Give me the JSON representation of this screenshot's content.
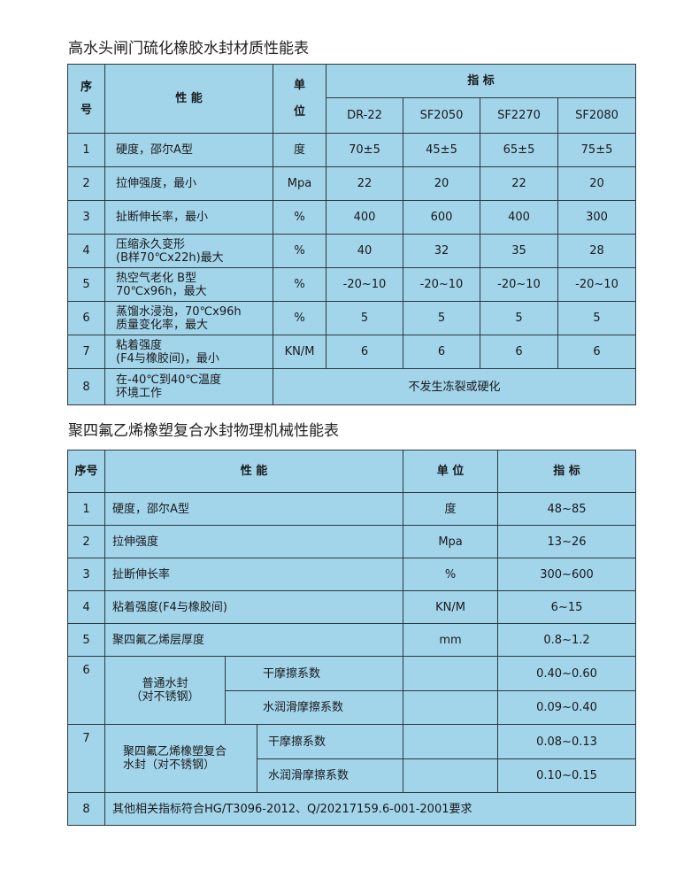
{
  "table1": {
    "title": "高水头闸门硫化橡胶水封材质性能表",
    "headers": {
      "seq": "序\n号",
      "property": "性 能",
      "unit": "单\n位",
      "index": "指 标",
      "grades": [
        "DR-22",
        "SF2050",
        "SF2270",
        "SF2080"
      ]
    },
    "rows": [
      {
        "no": "1",
        "property": "硬度，邵尔A型",
        "unit": "度",
        "values": [
          "70±5",
          "45±5",
          "65±5",
          "75±5"
        ]
      },
      {
        "no": "2",
        "property": "拉伸强度，最小",
        "unit": "Mpa",
        "values": [
          "22",
          "20",
          "22",
          "20"
        ]
      },
      {
        "no": "3",
        "property": "扯断伸长率，最小",
        "unit": "%",
        "values": [
          "400",
          "600",
          "400",
          "300"
        ]
      },
      {
        "no": "4",
        "property": "压缩永久变形\n(B样70℃x22h)最大",
        "unit": "%",
        "values": [
          "40",
          "32",
          "35",
          "28"
        ]
      },
      {
        "no": "5",
        "property": "热空气老化 B型\n70℃x96h，最大",
        "unit": "%",
        "values": [
          "-20~10",
          "-20~10",
          "-20~10",
          "-20~10"
        ]
      },
      {
        "no": "6",
        "property": "蒸馏水浸泡，70℃x96h\n质量变化率，最大",
        "unit": "%",
        "values": [
          "5",
          "5",
          "5",
          "5"
        ]
      },
      {
        "no": "7",
        "property": "粘着强度\n(F4与橡胶间)，最小",
        "unit": "KN/M",
        "values": [
          "6",
          "6",
          "6",
          "6"
        ]
      }
    ],
    "row8": {
      "no": "8",
      "property": "在-40℃到40℃温度\n环境工作",
      "value": "不发生冻裂或硬化"
    }
  },
  "table2": {
    "title": "聚四氟乙烯橡塑复合水封物理机械性能表",
    "headers": {
      "seq": "序号",
      "property": "性 能",
      "unit": "单 位",
      "index": "指 标"
    },
    "rows": [
      {
        "no": "1",
        "property": "硬度，邵尔A型",
        "unit": "度",
        "value": "48~85"
      },
      {
        "no": "2",
        "property": "拉伸强度",
        "unit": "Mpa",
        "value": "13~26"
      },
      {
        "no": "3",
        "property": "扯断伸长率",
        "unit": "%",
        "value": "300~600"
      },
      {
        "no": "4",
        "property": "粘着强度(F4与橡胶间)",
        "unit": "KN/M",
        "value": "6~15"
      },
      {
        "no": "5",
        "property": "聚四氟乙烯层厚度",
        "unit": "mm",
        "value": "0.8~1.2"
      }
    ],
    "row6": {
      "no": "6",
      "group": "普通水封\n（对不锈钢）",
      "sub": [
        {
          "property": "干摩擦系数",
          "value": "0.40~0.60"
        },
        {
          "property": "水润滑摩擦系数",
          "value": "0.09~0.40"
        }
      ]
    },
    "row7": {
      "no": "7",
      "group": "聚四氟乙烯橡塑复合\n水封（对不锈钢）",
      "sub": [
        {
          "property": "干摩擦系数",
          "value": "0.08~0.13"
        },
        {
          "property": "水润滑摩擦系数",
          "value": "0.10~0.15"
        }
      ]
    },
    "row8": {
      "no": "8",
      "text": "其他相关指标符合HG/T3096-2012、Q/20217159.6-001-2001要求"
    }
  }
}
